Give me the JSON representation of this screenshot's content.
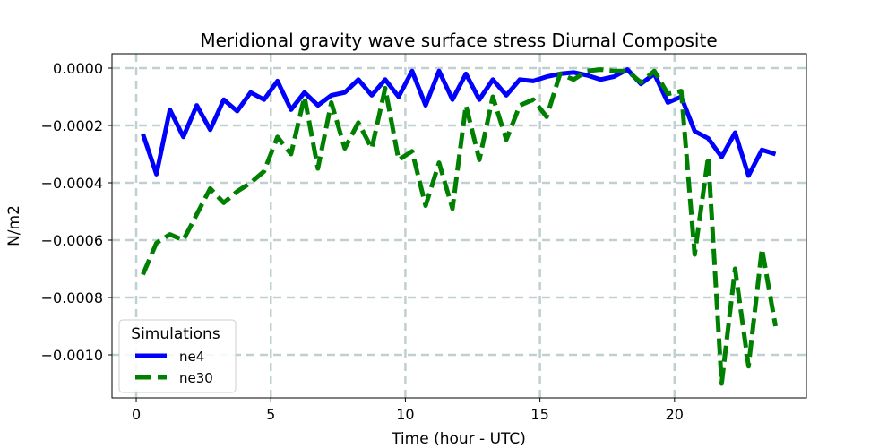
{
  "chart_data": {
    "type": "line",
    "title": "Meridional gravity wave surface stress Diurnal Composite",
    "xlabel": "Time (hour - UTC)",
    "ylabel": "N/m2",
    "xlim": [
      -0.9,
      24.9
    ],
    "ylim": [
      -0.00115,
      5e-05
    ],
    "xticks": [
      0,
      5,
      10,
      15,
      20
    ],
    "xtick_labels": [
      "0",
      "5",
      "10",
      "15",
      "20"
    ],
    "yticks": [
      0,
      -0.0002,
      -0.0004,
      -0.0006,
      -0.0008,
      -0.001
    ],
    "ytick_labels": [
      "0.0000",
      "−0.0002",
      "−0.0004",
      "−0.0006",
      "−0.0008",
      "−0.0010"
    ],
    "grid": true,
    "legend": {
      "title": "Simulations",
      "placement": "lower-left"
    },
    "x": [
      0.25,
      0.75,
      1.25,
      1.75,
      2.25,
      2.75,
      3.25,
      3.75,
      4.25,
      4.75,
      5.25,
      5.75,
      6.25,
      6.75,
      7.25,
      7.75,
      8.25,
      8.75,
      9.25,
      9.75,
      10.25,
      10.75,
      11.25,
      11.75,
      12.25,
      12.75,
      13.25,
      13.75,
      14.25,
      14.75,
      15.25,
      15.75,
      16.25,
      16.75,
      17.25,
      17.75,
      18.25,
      18.75,
      19.25,
      19.75,
      20.25,
      20.75,
      21.25,
      21.75,
      22.25,
      22.75,
      23.25,
      23.75
    ],
    "series": [
      {
        "name": "ne4",
        "color": "#0000ff",
        "style": "solid",
        "values": [
          -0.00023,
          -0.00037,
          -0.000145,
          -0.00024,
          -0.00013,
          -0.000215,
          -0.00011,
          -0.00015,
          -8.5e-05,
          -0.00011,
          -4.5e-05,
          -0.000145,
          -8.5e-05,
          -0.00013,
          -9.5e-05,
          -8.5e-05,
          -4e-05,
          -9.5e-05,
          -4e-05,
          -0.0001,
          -1e-05,
          -0.00013,
          -1e-05,
          -0.00011,
          -2e-05,
          -0.00011,
          -4e-05,
          -9.5e-05,
          -4e-05,
          -4.5e-05,
          -3e-05,
          -2e-05,
          -1.5e-05,
          -2.5e-05,
          -4e-05,
          -3e-05,
          -5e-06,
          -5.5e-05,
          -2e-05,
          -0.00012,
          -0.0001,
          -0.00022,
          -0.000245,
          -0.00031,
          -0.000225,
          -0.000375,
          -0.000285,
          -0.0003
        ]
      },
      {
        "name": "ne30",
        "color": "#008000",
        "style": "dashed",
        "values": [
          -0.00072,
          -0.00061,
          -0.00058,
          -0.0006,
          -0.00051,
          -0.00042,
          -0.00047,
          -0.00043,
          -0.0004,
          -0.00036,
          -0.00024,
          -0.0003,
          -0.0001,
          -0.00035,
          -0.00012,
          -0.00028,
          -0.00019,
          -0.00028,
          -7e-05,
          -0.00032,
          -0.00029,
          -0.00048,
          -0.00033,
          -0.00049,
          -0.00013,
          -0.00032,
          -0.0001,
          -0.00025,
          -0.00013,
          -0.00011,
          -0.00017,
          -2e-05,
          -4e-05,
          -1e-05,
          -5e-06,
          -1e-05,
          -1e-05,
          -5e-05,
          -1e-05,
          -9e-05,
          -8e-05,
          -0.00065,
          -0.00031,
          -0.0011,
          -0.0007,
          -0.00104,
          -0.00063,
          -0.0009
        ]
      }
    ]
  }
}
